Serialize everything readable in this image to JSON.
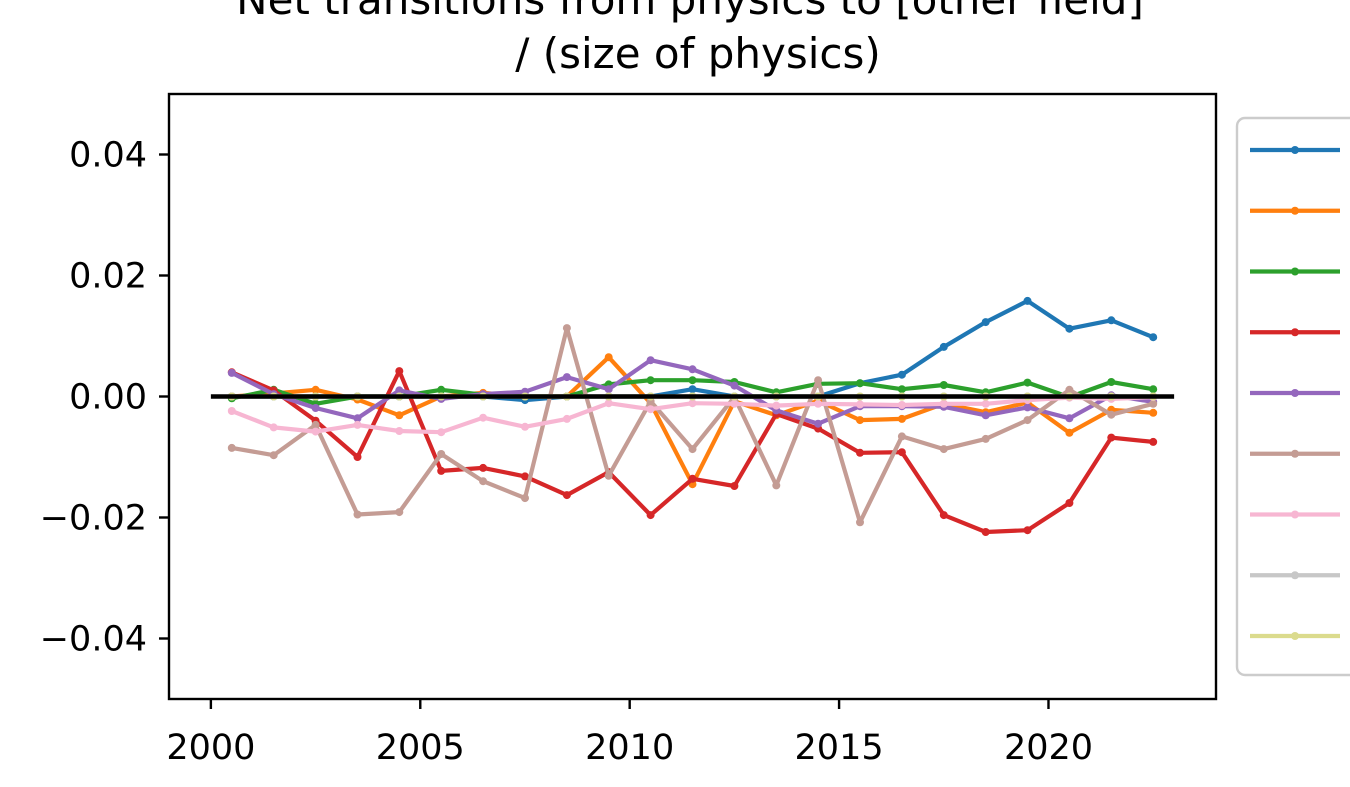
{
  "chart_data": {
    "type": "line",
    "title_lines": [
      "Net transitions from physics to [other field]",
      "/ (size of physics)"
    ],
    "xlabel": "",
    "ylabel": "",
    "xlim": [
      1999,
      2024
    ],
    "ylim": [
      -0.05,
      0.05
    ],
    "xticks": [
      2000,
      2005,
      2010,
      2015,
      2020
    ],
    "xtick_labels": [
      "2000",
      "2005",
      "2010",
      "2015",
      "2020"
    ],
    "yticks": [
      0.04,
      0.02,
      0.0,
      -0.02,
      -0.04
    ],
    "ytick_labels": [
      "0.04",
      "0.02",
      "0.00",
      "−0.02",
      "−0.04"
    ],
    "grid": false,
    "legend_position": "right, outside plot (labels not visible)",
    "x": [
      2000.5,
      2001.5,
      2002.5,
      2003.5,
      2004.5,
      2005.5,
      2006.5,
      2007.5,
      2008.5,
      2009.5,
      2010.5,
      2011.5,
      2012.5,
      2013.5,
      2014.5,
      2015.5,
      2016.5,
      2017.5,
      2018.5,
      2019.5,
      2020.5,
      2021.5,
      2022.5
    ],
    "reference_line": {
      "y": 0.0,
      "x_range": [
        2000,
        2023
      ],
      "color": "#000000"
    },
    "series": [
      {
        "color": "#1f77b4",
        "values": [
          0.0,
          0.0,
          0.0,
          0.0,
          0.0,
          0.0,
          0.0,
          -0.0006,
          0.0,
          0.0,
          0.0,
          0.0012,
          0.0,
          0.0,
          0.0,
          0.0022,
          0.0036,
          0.0082,
          0.0123,
          0.0158,
          0.0112,
          0.0126,
          0.0098
        ]
      },
      {
        "color": "#ff7f0e",
        "values": [
          0.0,
          0.0005,
          0.0011,
          -0.0005,
          -0.0031,
          0.0,
          0.0006,
          0.0,
          0.0,
          0.0065,
          -0.0011,
          -0.0145,
          -0.0008,
          -0.0031,
          -0.0007,
          -0.0039,
          -0.0037,
          -0.0012,
          -0.0026,
          -0.001,
          -0.006,
          -0.0022,
          -0.0027
        ]
      },
      {
        "color": "#2ca02c",
        "values": [
          -0.0003,
          0.0011,
          -0.0012,
          0.0,
          0.0,
          0.0011,
          0.0003,
          0.0,
          0.0,
          0.002,
          0.0027,
          0.0027,
          0.0024,
          0.0007,
          0.0021,
          0.0022,
          0.0012,
          0.0019,
          0.0007,
          0.0023,
          -0.0001,
          0.0024,
          0.0012
        ]
      },
      {
        "color": "#d62728",
        "values": [
          0.004,
          0.001,
          -0.004,
          -0.01,
          0.0042,
          -0.0123,
          -0.0118,
          -0.0132,
          -0.0163,
          -0.0125,
          -0.0196,
          -0.0136,
          -0.0148,
          -0.0029,
          -0.0053,
          -0.0093,
          -0.0092,
          -0.0196,
          -0.0224,
          -0.0221,
          -0.0176,
          -0.0068,
          -0.0075
        ]
      },
      {
        "color": "#9467bd",
        "values": [
          0.0039,
          0.0004,
          -0.0019,
          -0.0036,
          0.001,
          -0.0004,
          0.0004,
          0.0008,
          0.0032,
          0.0012,
          0.006,
          0.0045,
          0.0018,
          -0.0023,
          -0.0045,
          -0.0016,
          -0.0016,
          -0.0017,
          -0.0031,
          -0.0018,
          -0.0036,
          0.0002,
          -0.0009
        ]
      },
      {
        "color": "#c49c94",
        "values": [
          -0.0085,
          -0.0097,
          -0.0047,
          -0.0195,
          -0.0191,
          -0.0095,
          -0.014,
          -0.0168,
          0.0113,
          -0.0131,
          -0.0008,
          -0.0087,
          -0.0001,
          -0.0147,
          0.0027,
          -0.0208,
          -0.0066,
          -0.0087,
          -0.007,
          -0.0039,
          0.0011,
          -0.003,
          -0.0012
        ]
      },
      {
        "color": "#f7b6d2",
        "values": [
          -0.0024,
          -0.0051,
          -0.0058,
          -0.0047,
          -0.0057,
          -0.0059,
          -0.0035,
          -0.005,
          -0.0037,
          -0.0011,
          -0.0021,
          -0.0011,
          -0.0012,
          -0.0015,
          -0.0012,
          -0.0013,
          -0.0014,
          -0.0012,
          -0.0012,
          -0.0006,
          -0.0002,
          -0.0004,
          -0.0001
        ]
      },
      {
        "color": "#c7c7c7",
        "values": [
          0.0,
          0.0,
          0.0,
          0.0,
          0.0,
          0.0,
          0.0,
          0.0,
          0.0,
          0.0,
          0.0,
          0.0,
          0.0,
          0.0,
          0.0,
          0.0,
          0.0,
          0.0,
          0.0,
          0.0,
          0.0,
          0.0,
          0.0
        ]
      },
      {
        "color": "#dbdb8d",
        "values": [
          0.0,
          0.0,
          0.0,
          0.0,
          0.0,
          0.0,
          0.0,
          0.0,
          0.0,
          0.0,
          0.0,
          0.0,
          0.0,
          0.0,
          0.0,
          0.0,
          0.0,
          0.0,
          0.0,
          0.0,
          0.0,
          0.0,
          0.0
        ]
      }
    ]
  }
}
